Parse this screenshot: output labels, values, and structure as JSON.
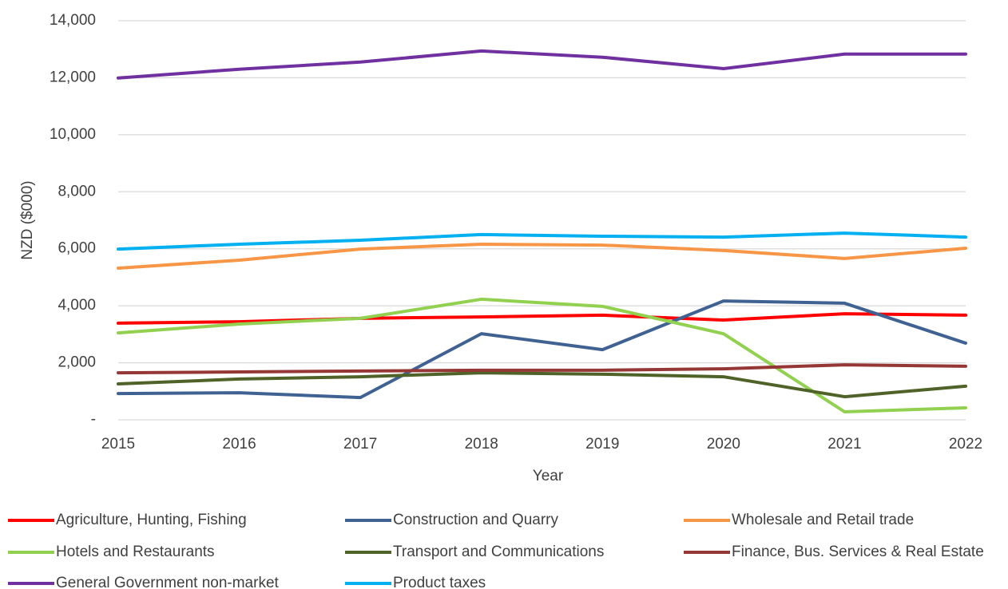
{
  "chart_data": {
    "type": "line",
    "x_label": "Year",
    "y_label": "NZD ($000)",
    "categories": [
      "2015",
      "2016",
      "2017",
      "2018",
      "2019",
      "2020",
      "2021",
      "2022"
    ],
    "ylim": [
      0,
      14000
    ],
    "yticks": [
      {
        "value": 0,
        "label": "-"
      },
      {
        "value": 2000,
        "label": "2,000"
      },
      {
        "value": 4000,
        "label": "4,000"
      },
      {
        "value": 6000,
        "label": "6,000"
      },
      {
        "value": 8000,
        "label": "8,000"
      },
      {
        "value": 10000,
        "label": "10,000"
      },
      {
        "value": 12000,
        "label": "12,000"
      },
      {
        "value": 14000,
        "label": "14,000"
      }
    ],
    "grid": true,
    "legend": "bottom",
    "series": [
      {
        "name": "Agriculture, Hunting, Fishing",
        "color": "#ff0000",
        "values": [
          3390,
          3440,
          3560,
          3610,
          3670,
          3500,
          3720,
          3670
        ]
      },
      {
        "name": "Construction and Quarry",
        "color": "#406293",
        "values": [
          920,
          950,
          780,
          3020,
          2460,
          4170,
          4090,
          2690
        ]
      },
      {
        "name": "Wholesale and Retail trade",
        "color": "#f79646",
        "values": [
          5320,
          5600,
          5990,
          6160,
          6130,
          5940,
          5660,
          6020
        ]
      },
      {
        "name": "Hotels and Restaurants",
        "color": "#92d050",
        "values": [
          3050,
          3360,
          3560,
          4230,
          3980,
          3020,
          280,
          420
        ]
      },
      {
        "name": "Transport and Communications",
        "color": "#4f6228",
        "values": [
          1260,
          1430,
          1510,
          1650,
          1600,
          1510,
          810,
          1180
        ]
      },
      {
        "name": "Finance, Bus. Services & Real Estate",
        "color": "#953735",
        "values": [
          1650,
          1680,
          1710,
          1740,
          1740,
          1790,
          1930,
          1880
        ]
      },
      {
        "name": "General Government non-market",
        "color": "#7030a0",
        "values": [
          11990,
          12300,
          12550,
          12940,
          12720,
          12320,
          12830,
          12830
        ]
      },
      {
        "name": "Product taxes",
        "color": "#00b0f0",
        "values": [
          5990,
          6160,
          6300,
          6500,
          6440,
          6410,
          6550,
          6410
        ]
      }
    ]
  }
}
